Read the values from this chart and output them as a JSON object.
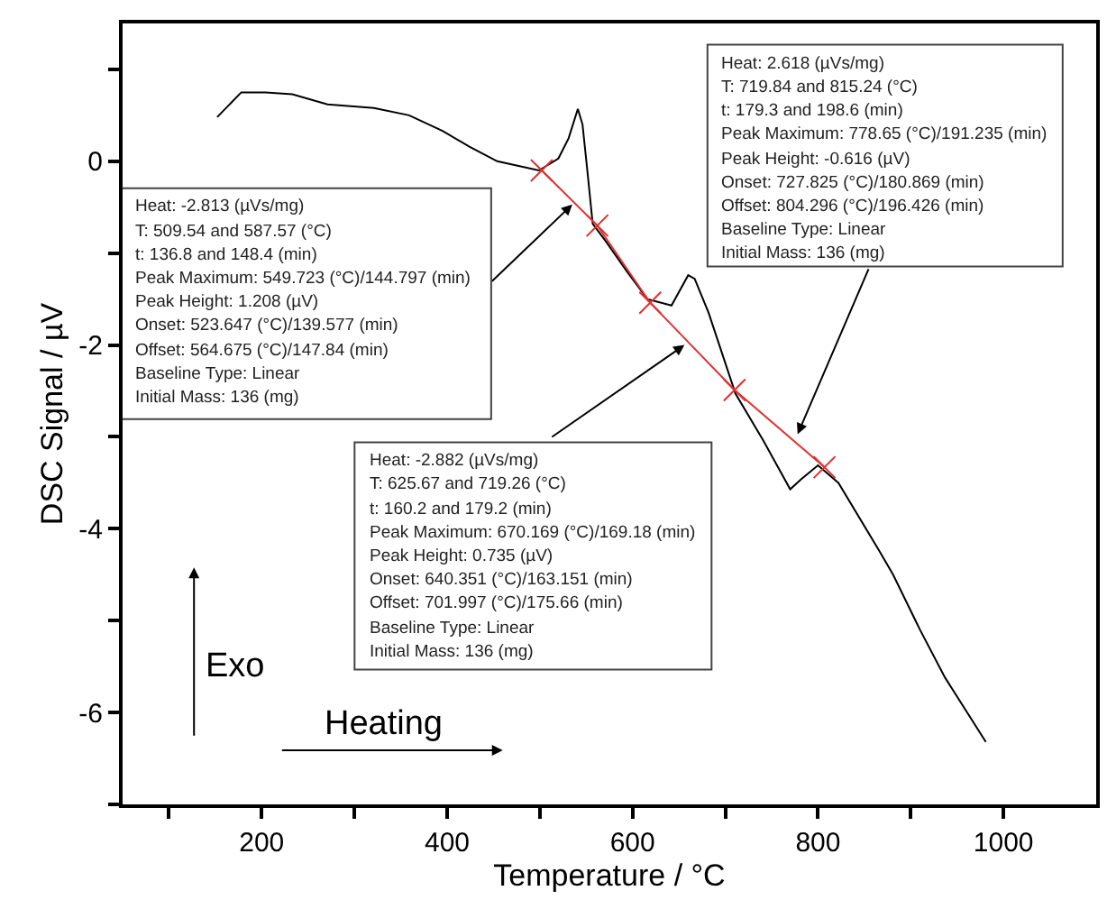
{
  "chart_data": {
    "type": "line",
    "xlabel": "Temperature / °C",
    "ylabel": "DSC Signal / µV",
    "xlim": [
      50,
      1100
    ],
    "ylim": [
      -7,
      1.5
    ],
    "xticks": [
      {
        "value": 100,
        "label": null
      },
      200,
      {
        "value": 300,
        "label": null
      },
      400,
      {
        "value": 500,
        "label": null
      },
      600,
      {
        "value": 700,
        "label": null
      },
      800,
      {
        "value": 900,
        "label": null
      },
      1000
    ],
    "yticks": [
      {
        "value": -7,
        "label": null
      },
      -6,
      {
        "value": -5,
        "label": null
      },
      -4,
      {
        "value": -3,
        "label": null
      },
      -2,
      {
        "value": -1,
        "label": null
      },
      0,
      {
        "value": 1,
        "label": null
      }
    ],
    "series": [
      {
        "color": "#000000",
        "marker": "none",
        "line_style": "solid",
        "x": [
          152,
          178,
          204,
          233,
          271,
          321,
          359,
          395,
          424,
          454,
          499,
          520,
          531,
          541,
          546,
          551,
          557,
          571,
          594,
          616,
          642,
          660,
          667,
          682,
          711,
          741,
          770,
          782,
          800,
          822,
          866,
          881,
          910,
          937,
          981
        ],
        "values": [
          0.48,
          0.75,
          0.75,
          0.73,
          0.62,
          0.58,
          0.5,
          0.33,
          0.16,
          0,
          -0.1,
          0.03,
          0.25,
          0.57,
          0.4,
          -0.08,
          -0.68,
          -0.87,
          -1.2,
          -1.5,
          -1.57,
          -1.24,
          -1.28,
          -1.65,
          -2.53,
          -3.04,
          -3.57,
          -3.46,
          -3.31,
          -3.5,
          -4.24,
          -4.5,
          -5.1,
          -5.62,
          -6.32
        ]
      },
      {
        "color": "#e03030",
        "marker": "cross",
        "line_style": "solid",
        "x": [
          502,
          562,
          619,
          710,
          807
        ],
        "values": [
          -0.1,
          -0.7,
          -1.54,
          -2.49,
          -3.33
        ]
      }
    ],
    "annotations": [
      "Heat: -2.813 (µVs/mg)",
      "T: 509.54 and 587.57 (°C)",
      "t: 136.8 and 148.4 (min)",
      {
        "text": "Peak Maximum: 549.723 (°C)/144.797 (min)",
        "x": 535,
        "y": -0.47
      },
      "Peak Height: 1.208 (µV)",
      "Onset: 523.647 (°C)/139.577 (min)",
      "Offset: 564.675 (°C)/147.84 (min)",
      "Baseline Type: Linear",
      "Initial Mass: 136 (mg)",
      "Heat: 2.618 (µVs/mg)",
      "T: 719.84 and 815.24 (°C)",
      "t: 179.3 and 198.6 (min)",
      "Peak Maximum: 778.65 (°C)/191.235 (min)",
      "Peak Height: -0.616 (µV)",
      "Onset: 727.825 (°C)/180.869 (min)",
      "Offset: 804.296 (°C)/196.426 (min)",
      "Baseline Type: Linear",
      {
        "text": "Initial Mass: 136 (mg)",
        "x": 778,
        "y": -2.97
      },
      {
        "text": "Heat: -2.882 (µVs/mg)",
        "x": 656,
        "y": -2.0
      },
      "T: 625.67 and 719.26 (°C)",
      "t: 160.2 and 179.2 (min)",
      "Peak Maximum: 670.169 (°C)/169.18 (min)",
      "Peak Height: 0.735 (µV)",
      "Onset: 640.351 (°C)/163.151 (min)",
      "Offset: 701.997 (°C)/175.66 (min)",
      "Baseline Type: Linear",
      "Initial Mass: 136 (mg)",
      "Exo",
      "Heating"
    ]
  }
}
